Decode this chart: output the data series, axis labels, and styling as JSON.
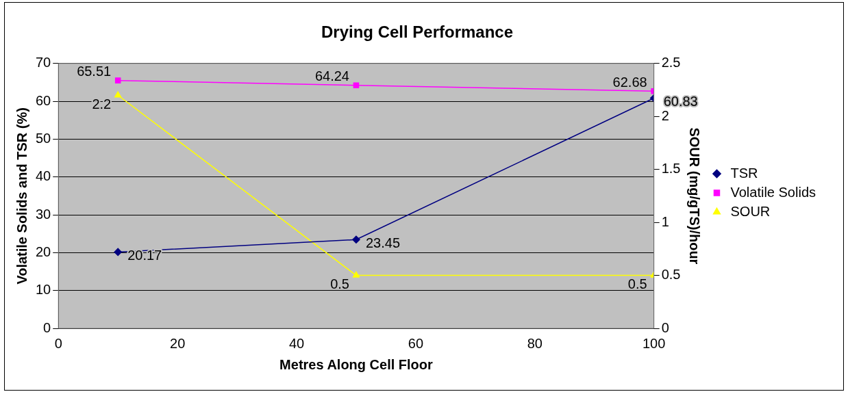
{
  "chart_data": {
    "type": "line",
    "title": "Drying Cell Performance",
    "xlabel": "Metres Along Cell Floor",
    "ylabel": "Volatile Solids and TSR (%)",
    "y2label": "SOUR (mg/gTS)/hour",
    "x": [
      10,
      50,
      100
    ],
    "series": [
      {
        "name": "TSR",
        "color": "#000080",
        "marker": "diamond",
        "values": [
          20.17,
          23.45,
          60.83
        ]
      },
      {
        "name": "Volatile Solids",
        "color": "#ff00ff",
        "marker": "square",
        "values": [
          65.51,
          64.24,
          62.68
        ]
      },
      {
        "name": "SOUR",
        "color": "#ffff00",
        "marker": "triangle",
        "axis": "y2",
        "values": [
          2.2,
          0.5,
          0.5
        ]
      }
    ],
    "xlim": [
      0,
      100
    ],
    "xticks": [
      0,
      20,
      40,
      60,
      80,
      100
    ],
    "ylim": [
      0,
      70
    ],
    "yticks": [
      0,
      10,
      20,
      30,
      40,
      50,
      60,
      70
    ],
    "y2lim": [
      0,
      2.5
    ],
    "y2ticks": [
      0,
      0.5,
      1,
      1.5,
      2,
      2.5
    ],
    "grid": "y",
    "legend": "right",
    "data_labels": true
  }
}
